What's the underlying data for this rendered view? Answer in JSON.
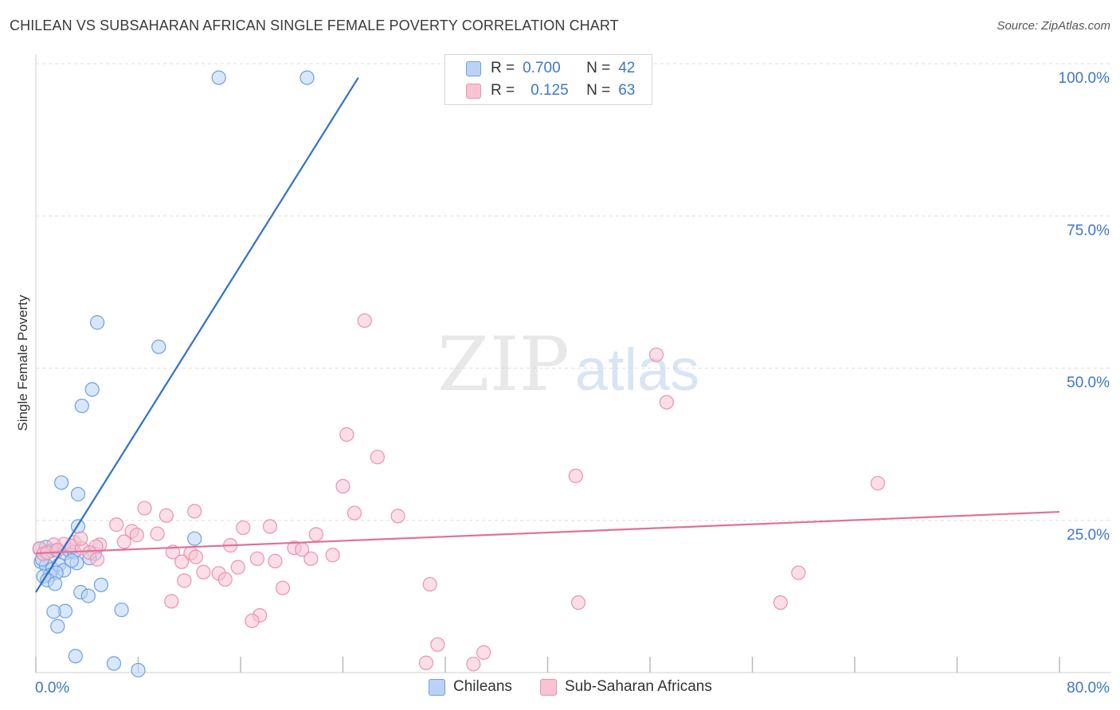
{
  "title": "CHILEAN VS SUBSAHARAN AFRICAN SINGLE FEMALE POVERTY CORRELATION CHART",
  "source": "Source: ZipAtlas.com",
  "watermark": {
    "zip": "ZIP",
    "atlas": "atlas"
  },
  "legend": {
    "rows": [
      {
        "r_label": "R =",
        "r_value": "0.700",
        "n_label": "N =",
        "n_value": "42"
      },
      {
        "r_label": "R =",
        "r_value": "0.125",
        "n_label": "N =",
        "n_value": "63"
      }
    ]
  },
  "bottom_legend": {
    "chileans": "Chileans",
    "subsaharan": "Sub-Saharan Africans"
  },
  "colors": {
    "chilean_fill": "#b9d3f5",
    "chilean_stroke": "#6f9fe0",
    "chilean_line": "#2e72cc",
    "ssa_fill": "#f8c3d3",
    "ssa_stroke": "#ea93ae",
    "ssa_line": "#e0709a",
    "tick_label": "#3d77c9",
    "grid": "#dedede"
  },
  "chart_data": {
    "type": "scatter",
    "title": "CHILEAN VS SUBSAHARAN AFRICAN SINGLE FEMALE POVERTY CORRELATION CHART",
    "xlabel": "",
    "ylabel": "Single Female Poverty",
    "xlim": [
      0,
      80
    ],
    "ylim": [
      0,
      100
    ],
    "x_tick_labels": [
      "0.0%",
      "80.0%"
    ],
    "y_ticks": [
      25,
      50,
      75,
      100
    ],
    "y_tick_labels": [
      "25.0%",
      "50.0%",
      "75.0%",
      "100.0%"
    ],
    "grid": true,
    "legend_position": "top-center",
    "series": [
      {
        "name": "Chileans",
        "r": 0.7,
        "n": 42,
        "trend": {
          "x": [
            0,
            25.2
          ],
          "y": [
            13.2,
            97.7
          ]
        },
        "points": [
          [
            14.3,
            97.7
          ],
          [
            21.2,
            97.7
          ],
          [
            4.8,
            57.5
          ],
          [
            9.6,
            53.5
          ],
          [
            4.4,
            46.5
          ],
          [
            3.6,
            43.8
          ],
          [
            2.0,
            31.2
          ],
          [
            3.3,
            29.3
          ],
          [
            3.3,
            24.0
          ],
          [
            12.4,
            22.0
          ],
          [
            4.6,
            19.5
          ],
          [
            4.2,
            18.8
          ],
          [
            0.3,
            20.3
          ],
          [
            0.8,
            20.6
          ],
          [
            1.2,
            20.0
          ],
          [
            1.6,
            20.1
          ],
          [
            2.3,
            19.6
          ],
          [
            2.6,
            20.1
          ],
          [
            3.0,
            19.8
          ],
          [
            0.4,
            18.2
          ],
          [
            0.8,
            17.6
          ],
          [
            1.3,
            17.0
          ],
          [
            1.8,
            17.7
          ],
          [
            2.2,
            16.8
          ],
          [
            3.2,
            18.0
          ],
          [
            1.1,
            16.0
          ],
          [
            1.6,
            16.4
          ],
          [
            0.6,
            15.8
          ],
          [
            0.9,
            15.2
          ],
          [
            1.5,
            14.6
          ],
          [
            3.5,
            13.2
          ],
          [
            5.1,
            14.4
          ],
          [
            4.1,
            12.6
          ],
          [
            6.7,
            10.3
          ],
          [
            2.3,
            10.1
          ],
          [
            1.4,
            10.0
          ],
          [
            1.7,
            7.6
          ],
          [
            3.1,
            2.7
          ],
          [
            6.1,
            1.5
          ],
          [
            8.0,
            0.4
          ],
          [
            0.5,
            18.6
          ],
          [
            2.8,
            18.4
          ]
        ]
      },
      {
        "name": "Sub-Saharan Africans",
        "r": 0.125,
        "n": 63,
        "trend": {
          "x": [
            0,
            80
          ],
          "y": [
            19.6,
            26.4
          ]
        },
        "points": [
          [
            25.7,
            57.8
          ],
          [
            48.5,
            52.2
          ],
          [
            49.3,
            44.4
          ],
          [
            24.3,
            39.1
          ],
          [
            26.7,
            35.4
          ],
          [
            42.2,
            32.3
          ],
          [
            65.8,
            31.1
          ],
          [
            24.0,
            30.6
          ],
          [
            24.9,
            26.2
          ],
          [
            28.3,
            25.7
          ],
          [
            10.2,
            25.8
          ],
          [
            12.4,
            26.5
          ],
          [
            8.5,
            27.0
          ],
          [
            6.3,
            24.3
          ],
          [
            16.2,
            23.8
          ],
          [
            18.3,
            24.0
          ],
          [
            7.5,
            23.2
          ],
          [
            7.9,
            22.6
          ],
          [
            21.9,
            22.7
          ],
          [
            9.5,
            22.8
          ],
          [
            5.0,
            21.0
          ],
          [
            6.9,
            21.5
          ],
          [
            3.0,
            21.4
          ],
          [
            4.7,
            20.7
          ],
          [
            20.2,
            20.5
          ],
          [
            2.2,
            21.1
          ],
          [
            1.4,
            21.0
          ],
          [
            2.8,
            20.8
          ],
          [
            3.6,
            20.4
          ],
          [
            4.2,
            19.7
          ],
          [
            0.3,
            20.4
          ],
          [
            0.6,
            19.5
          ],
          [
            0.9,
            19.7
          ],
          [
            1.7,
            20.1
          ],
          [
            3.5,
            22.0
          ],
          [
            10.7,
            19.8
          ],
          [
            12.1,
            19.6
          ],
          [
            15.2,
            20.9
          ],
          [
            20.8,
            20.2
          ],
          [
            23.2,
            19.3
          ],
          [
            21.5,
            18.7
          ],
          [
            17.3,
            18.7
          ],
          [
            18.7,
            18.3
          ],
          [
            11.4,
            18.2
          ],
          [
            12.5,
            19.0
          ],
          [
            4.8,
            18.6
          ],
          [
            15.8,
            17.3
          ],
          [
            14.3,
            16.3
          ],
          [
            13.1,
            16.5
          ],
          [
            59.6,
            16.4
          ],
          [
            11.6,
            15.1
          ],
          [
            14.8,
            15.3
          ],
          [
            19.3,
            13.9
          ],
          [
            30.8,
            14.5
          ],
          [
            10.6,
            11.7
          ],
          [
            42.4,
            11.5
          ],
          [
            58.2,
            11.5
          ],
          [
            17.5,
            9.4
          ],
          [
            16.9,
            8.5
          ],
          [
            31.4,
            4.6
          ],
          [
            35.0,
            3.3
          ],
          [
            30.5,
            1.6
          ],
          [
            34.2,
            1.4
          ]
        ]
      }
    ]
  }
}
